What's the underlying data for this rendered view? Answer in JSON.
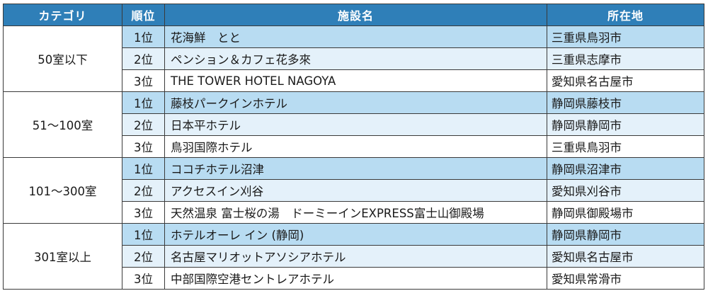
{
  "headers": {
    "category": "カテゴリ",
    "rank": "順位",
    "facility": "施設名",
    "location": "所在地"
  },
  "groups": [
    {
      "category": "50室以下",
      "rows": [
        {
          "rank": "1位",
          "facility": "花海鮮　とと",
          "location": "三重県鳥羽市"
        },
        {
          "rank": "2位",
          "facility": "ペンション＆カフェ花多來",
          "location": "三重県志摩市"
        },
        {
          "rank": "3位",
          "facility": "THE TOWER HOTEL NAGOYA",
          "location": "愛知県名古屋市"
        }
      ]
    },
    {
      "category": "51～100室",
      "rows": [
        {
          "rank": "1位",
          "facility": "藤枝パークインホテル",
          "location": "静岡県藤枝市"
        },
        {
          "rank": "2位",
          "facility": "日本平ホテル",
          "location": "静岡県静岡市"
        },
        {
          "rank": "3位",
          "facility": "鳥羽国際ホテル",
          "location": "三重県鳥羽市"
        }
      ]
    },
    {
      "category": "101～300室",
      "rows": [
        {
          "rank": "1位",
          "facility": "ココチホテル沼津",
          "location": "静岡県沼津市"
        },
        {
          "rank": "2位",
          "facility": "アクセスイン刈谷",
          "location": "愛知県刈谷市"
        },
        {
          "rank": "3位",
          "facility": "天然温泉 富士桜の湯　ドーミーインEXPRESS富士山御殿場",
          "location": "静岡県御殿場市"
        }
      ]
    },
    {
      "category": "301室以上",
      "rows": [
        {
          "rank": "1位",
          "facility": "ホテルオーレ イン (静岡)",
          "location": "静岡県静岡市"
        },
        {
          "rank": "2位",
          "facility": "名古屋マリオットアソシアホテル",
          "location": "愛知県名古屋市"
        },
        {
          "rank": "3位",
          "facility": "中部国際空港セントレアホテル",
          "location": "愛知県常滑市"
        }
      ]
    }
  ]
}
